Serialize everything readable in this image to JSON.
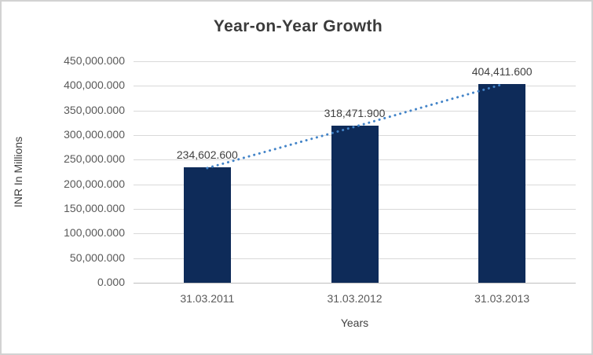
{
  "chart_data": {
    "type": "bar",
    "title": "Year-on-Year Growth",
    "categories": [
      "31.03.2011",
      "31.03.2012",
      "31.03.2013"
    ],
    "values": [
      234602.6,
      318471.9,
      404411.6
    ],
    "data_labels": [
      "234,602.600",
      "318,471.900",
      "404,411.600"
    ],
    "xlabel": "Years",
    "ylabel": "INR In Millions",
    "ylim": [
      0,
      450000
    ],
    "ytick_step": 50000,
    "ytick_labels": [
      "450,000.000",
      "400,000.000",
      "350,000.000",
      "300,000.000",
      "250,000.000",
      "200,000.000",
      "150,000.000",
      "100,000.000",
      "50,000.000",
      "0.000"
    ],
    "legend": "none",
    "grid": true,
    "trendline": {
      "type": "linear",
      "style": "dotted",
      "color": "#4384c8"
    },
    "colors": {
      "bar": "#0e2b59",
      "gridline": "#d9d9d9",
      "axis_line": "#bfbfbf",
      "tick_text": "#595959",
      "title_text": "#3b3b3b",
      "background": "#ffffff",
      "border": "#d2d2d2"
    }
  }
}
